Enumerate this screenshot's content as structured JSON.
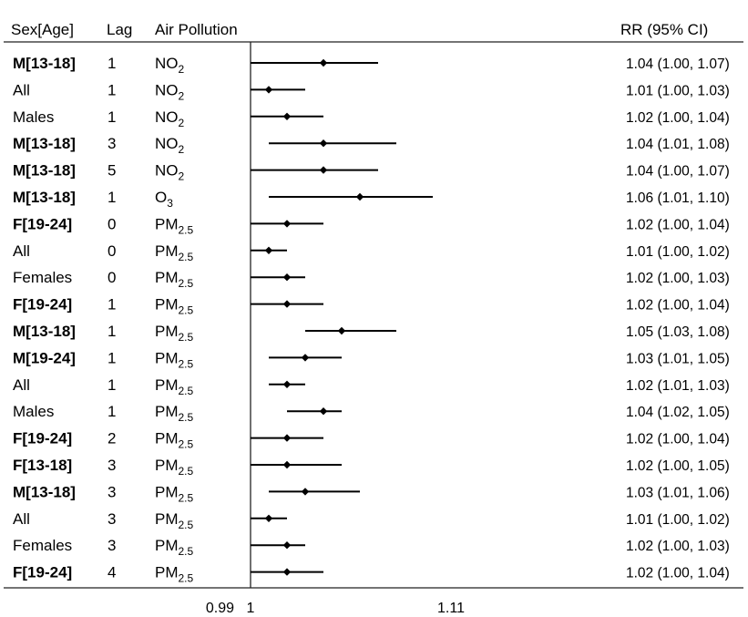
{
  "chart_data": {
    "type": "forest",
    "columns": {
      "sex_age": "Sex[Age]",
      "lag": "Lag",
      "pollutant": "Air Pollution",
      "rr_ci": "RR (95% CI)"
    },
    "x_ticks": [
      {
        "label": "0.99",
        "value": 0.99
      },
      {
        "label": "1",
        "value": 1.0
      },
      {
        "label": "1.11",
        "value": 1.11
      }
    ],
    "reference_value": 1.0,
    "rows": [
      {
        "group": "M[13-18]",
        "group_bold": true,
        "lag": "1",
        "pollutant": {
          "base": "NO",
          "sub": "2"
        },
        "rr": 1.04,
        "lower": 1.0,
        "upper": 1.07,
        "rr_text": "1.04 (1.00, 1.07)"
      },
      {
        "group": "All",
        "group_bold": false,
        "lag": "1",
        "pollutant": {
          "base": "NO",
          "sub": "2"
        },
        "rr": 1.01,
        "lower": 1.0,
        "upper": 1.03,
        "rr_text": "1.01 (1.00, 1.03)"
      },
      {
        "group": "Males",
        "group_bold": false,
        "lag": "1",
        "pollutant": {
          "base": "NO",
          "sub": "2"
        },
        "rr": 1.02,
        "lower": 1.0,
        "upper": 1.04,
        "rr_text": "1.02 (1.00, 1.04)"
      },
      {
        "group": "M[13-18]",
        "group_bold": true,
        "lag": "3",
        "pollutant": {
          "base": "NO",
          "sub": "2"
        },
        "rr": 1.04,
        "lower": 1.01,
        "upper": 1.08,
        "rr_text": "1.04 (1.01, 1.08)"
      },
      {
        "group": "M[13-18]",
        "group_bold": true,
        "lag": "5",
        "pollutant": {
          "base": "NO",
          "sub": "2"
        },
        "rr": 1.04,
        "lower": 1.0,
        "upper": 1.07,
        "rr_text": "1.04 (1.00, 1.07)"
      },
      {
        "group": "M[13-18]",
        "group_bold": true,
        "lag": "1",
        "pollutant": {
          "base": "O",
          "sub": "3"
        },
        "rr": 1.06,
        "lower": 1.01,
        "upper": 1.1,
        "rr_text": "1.06 (1.01, 1.10)"
      },
      {
        "group": "F[19-24]",
        "group_bold": true,
        "lag": "0",
        "pollutant": {
          "base": "PM",
          "sub": "2.5"
        },
        "rr": 1.02,
        "lower": 1.0,
        "upper": 1.04,
        "rr_text": "1.02 (1.00, 1.04)"
      },
      {
        "group": "All",
        "group_bold": false,
        "lag": "0",
        "pollutant": {
          "base": "PM",
          "sub": "2.5"
        },
        "rr": 1.01,
        "lower": 1.0,
        "upper": 1.02,
        "rr_text": "1.01 (1.00, 1.02)"
      },
      {
        "group": "Females",
        "group_bold": false,
        "lag": "0",
        "pollutant": {
          "base": "PM",
          "sub": "2.5"
        },
        "rr": 1.02,
        "lower": 1.0,
        "upper": 1.03,
        "rr_text": "1.02 (1.00, 1.03)"
      },
      {
        "group": "F[19-24]",
        "group_bold": true,
        "lag": "1",
        "pollutant": {
          "base": "PM",
          "sub": "2.5"
        },
        "rr": 1.02,
        "lower": 1.0,
        "upper": 1.04,
        "rr_text": "1.02 (1.00, 1.04)"
      },
      {
        "group": "M[13-18]",
        "group_bold": true,
        "lag": "1",
        "pollutant": {
          "base": "PM",
          "sub": "2.5"
        },
        "rr": 1.05,
        "lower": 1.03,
        "upper": 1.08,
        "rr_text": "1.05 (1.03, 1.08)"
      },
      {
        "group": "M[19-24]",
        "group_bold": true,
        "lag": "1",
        "pollutant": {
          "base": "PM",
          "sub": "2.5"
        },
        "rr": 1.03,
        "lower": 1.01,
        "upper": 1.05,
        "rr_text": "1.03 (1.01, 1.05)"
      },
      {
        "group": "All",
        "group_bold": false,
        "lag": "1",
        "pollutant": {
          "base": "PM",
          "sub": "2.5"
        },
        "rr": 1.02,
        "lower": 1.01,
        "upper": 1.03,
        "rr_text": "1.02 (1.01, 1.03)"
      },
      {
        "group": "Males",
        "group_bold": false,
        "lag": "1",
        "pollutant": {
          "base": "PM",
          "sub": "2.5"
        },
        "rr": 1.04,
        "lower": 1.02,
        "upper": 1.05,
        "rr_text": "1.04 (1.02, 1.05)"
      },
      {
        "group": "F[19-24]",
        "group_bold": true,
        "lag": "2",
        "pollutant": {
          "base": "PM",
          "sub": "2.5"
        },
        "rr": 1.02,
        "lower": 1.0,
        "upper": 1.04,
        "rr_text": "1.02 (1.00, 1.04)"
      },
      {
        "group": "F[13-18]",
        "group_bold": true,
        "lag": "3",
        "pollutant": {
          "base": "PM",
          "sub": "2.5"
        },
        "rr": 1.02,
        "lower": 1.0,
        "upper": 1.05,
        "rr_text": "1.02 (1.00, 1.05)"
      },
      {
        "group": "M[13-18]",
        "group_bold": true,
        "lag": "3",
        "pollutant": {
          "base": "PM",
          "sub": "2.5"
        },
        "rr": 1.03,
        "lower": 1.01,
        "upper": 1.06,
        "rr_text": "1.03 (1.01, 1.06)"
      },
      {
        "group": "All",
        "group_bold": false,
        "lag": "3",
        "pollutant": {
          "base": "PM",
          "sub": "2.5"
        },
        "rr": 1.01,
        "lower": 1.0,
        "upper": 1.02,
        "rr_text": "1.01 (1.00, 1.02)"
      },
      {
        "group": "Females",
        "group_bold": false,
        "lag": "3",
        "pollutant": {
          "base": "PM",
          "sub": "2.5"
        },
        "rr": 1.02,
        "lower": 1.0,
        "upper": 1.03,
        "rr_text": "1.02 (1.00, 1.03)"
      },
      {
        "group": "F[19-24]",
        "group_bold": true,
        "lag": "4",
        "pollutant": {
          "base": "PM",
          "sub": "2.5"
        },
        "rr": 1.02,
        "lower": 1.0,
        "upper": 1.04,
        "rr_text": "1.02 (1.00, 1.04)"
      }
    ]
  }
}
